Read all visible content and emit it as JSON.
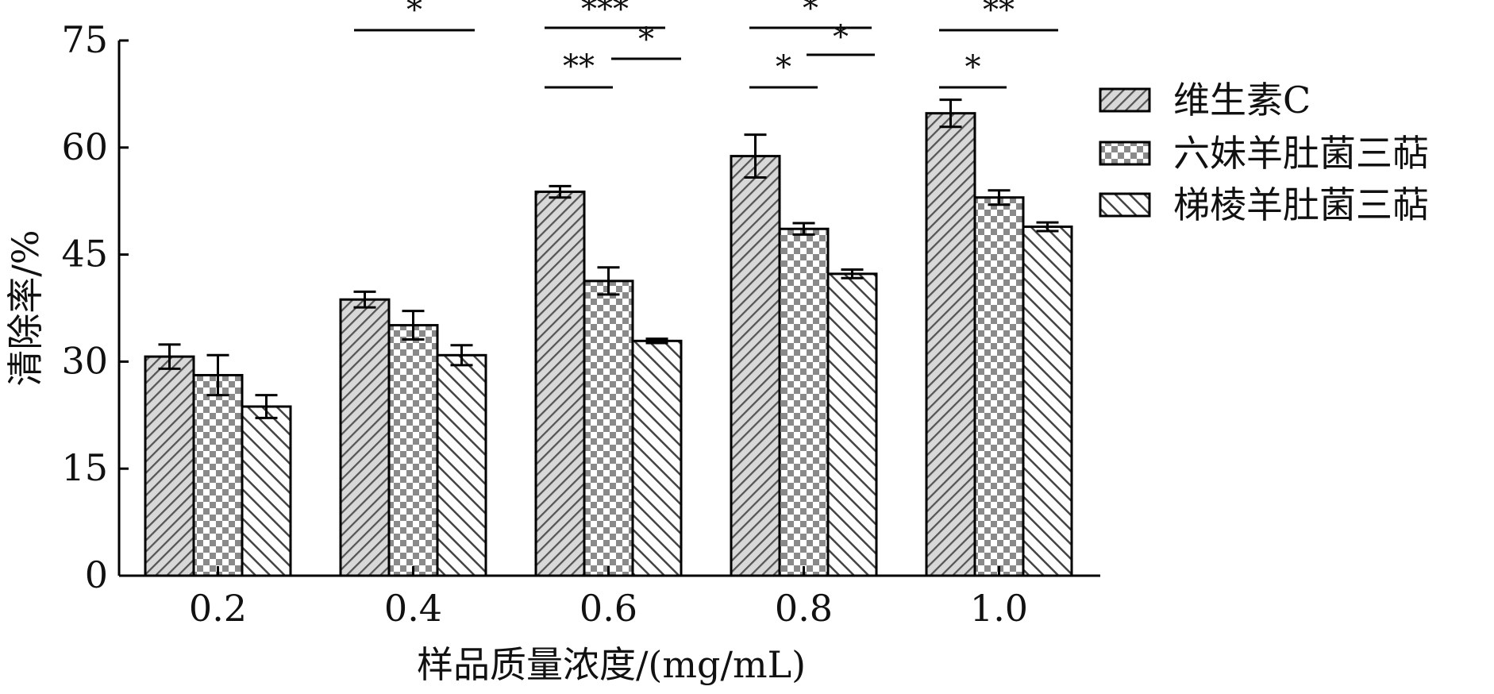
{
  "chart_data": {
    "type": "bar",
    "title": "",
    "xlabel": "样品质量浓度/(mg/mL)",
    "ylabel": "清除率/%",
    "ylim": [
      0,
      75
    ],
    "yticks": [
      "0",
      "15",
      "30",
      "45",
      "60",
      "75"
    ],
    "categories": [
      "0.2",
      "0.4",
      "0.6",
      "0.8",
      "1.0"
    ],
    "series": [
      {
        "name": "维生素C",
        "pattern": "diagonal-dense",
        "values": [
          30.7,
          38.7,
          53.8,
          58.8,
          64.8
        ],
        "errors": [
          1.7,
          1.1,
          0.8,
          3.0,
          1.9
        ]
      },
      {
        "name": "六妹羊肚菌三萜",
        "pattern": "checker",
        "values": [
          28.1,
          35.1,
          41.3,
          48.6,
          53.0
        ],
        "errors": [
          2.8,
          2.0,
          1.9,
          0.8,
          1.0
        ]
      },
      {
        "name": "梯棱羊肚菌三萜",
        "pattern": "diagonal-wide",
        "values": [
          23.7,
          30.9,
          32.9,
          42.3,
          48.9
        ],
        "errors": [
          1.6,
          1.4,
          0.3,
          0.6,
          0.6
        ]
      }
    ],
    "significance": [
      {
        "category": "0.4",
        "from_series": 0,
        "to_series": 2,
        "text": "*"
      },
      {
        "category": "0.6",
        "from_series": 0,
        "to_series": 2,
        "text": "***"
      },
      {
        "category": "0.6",
        "from_series": 0,
        "to_series": 1,
        "text": "**"
      },
      {
        "category": "0.6",
        "from_series": 1,
        "to_series": 2,
        "text": "*"
      },
      {
        "category": "0.8",
        "from_series": 0,
        "to_series": 2,
        "text": "*"
      },
      {
        "category": "0.8",
        "from_series": 0,
        "to_series": 1,
        "text": "*"
      },
      {
        "category": "0.8",
        "from_series": 1,
        "to_series": 2,
        "text": "*"
      },
      {
        "category": "1.0",
        "from_series": 0,
        "to_series": 2,
        "text": "**"
      },
      {
        "category": "1.0",
        "from_series": 0,
        "to_series": 1,
        "text": "*"
      }
    ],
    "legend_position": "right",
    "grid": false,
    "colors": {
      "bar_fill": "#ffffff",
      "pattern": "#555555",
      "axis": "#000000"
    }
  }
}
